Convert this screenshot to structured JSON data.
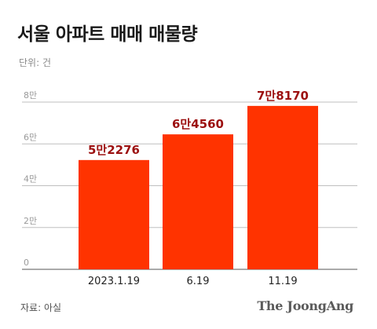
{
  "title": "서울 아파트 매매 매물량",
  "unit_label": "단위: 건",
  "source_label": "자료: 아실",
  "logo_text": "The JoongAng",
  "colors": {
    "bar": "#ff3300",
    "data_label": "#9c1010",
    "grid": "#bfbfbf"
  },
  "chart_data": {
    "type": "bar",
    "title": "서울 아파트 매매 매물량",
    "xlabel": "",
    "ylabel": "",
    "categories": [
      "2023.1.19",
      "6.19",
      "11.19"
    ],
    "values": [
      52276,
      64560,
      78170
    ],
    "data_labels": [
      "5만2276",
      "6만4560",
      "7만8170"
    ],
    "ylim": [
      0,
      80000
    ],
    "yticks": [
      0,
      20000,
      40000,
      60000,
      80000
    ],
    "ytick_labels": [
      "0",
      "2만",
      "4만",
      "6만",
      "8만"
    ],
    "grid": true,
    "legend": "none"
  }
}
